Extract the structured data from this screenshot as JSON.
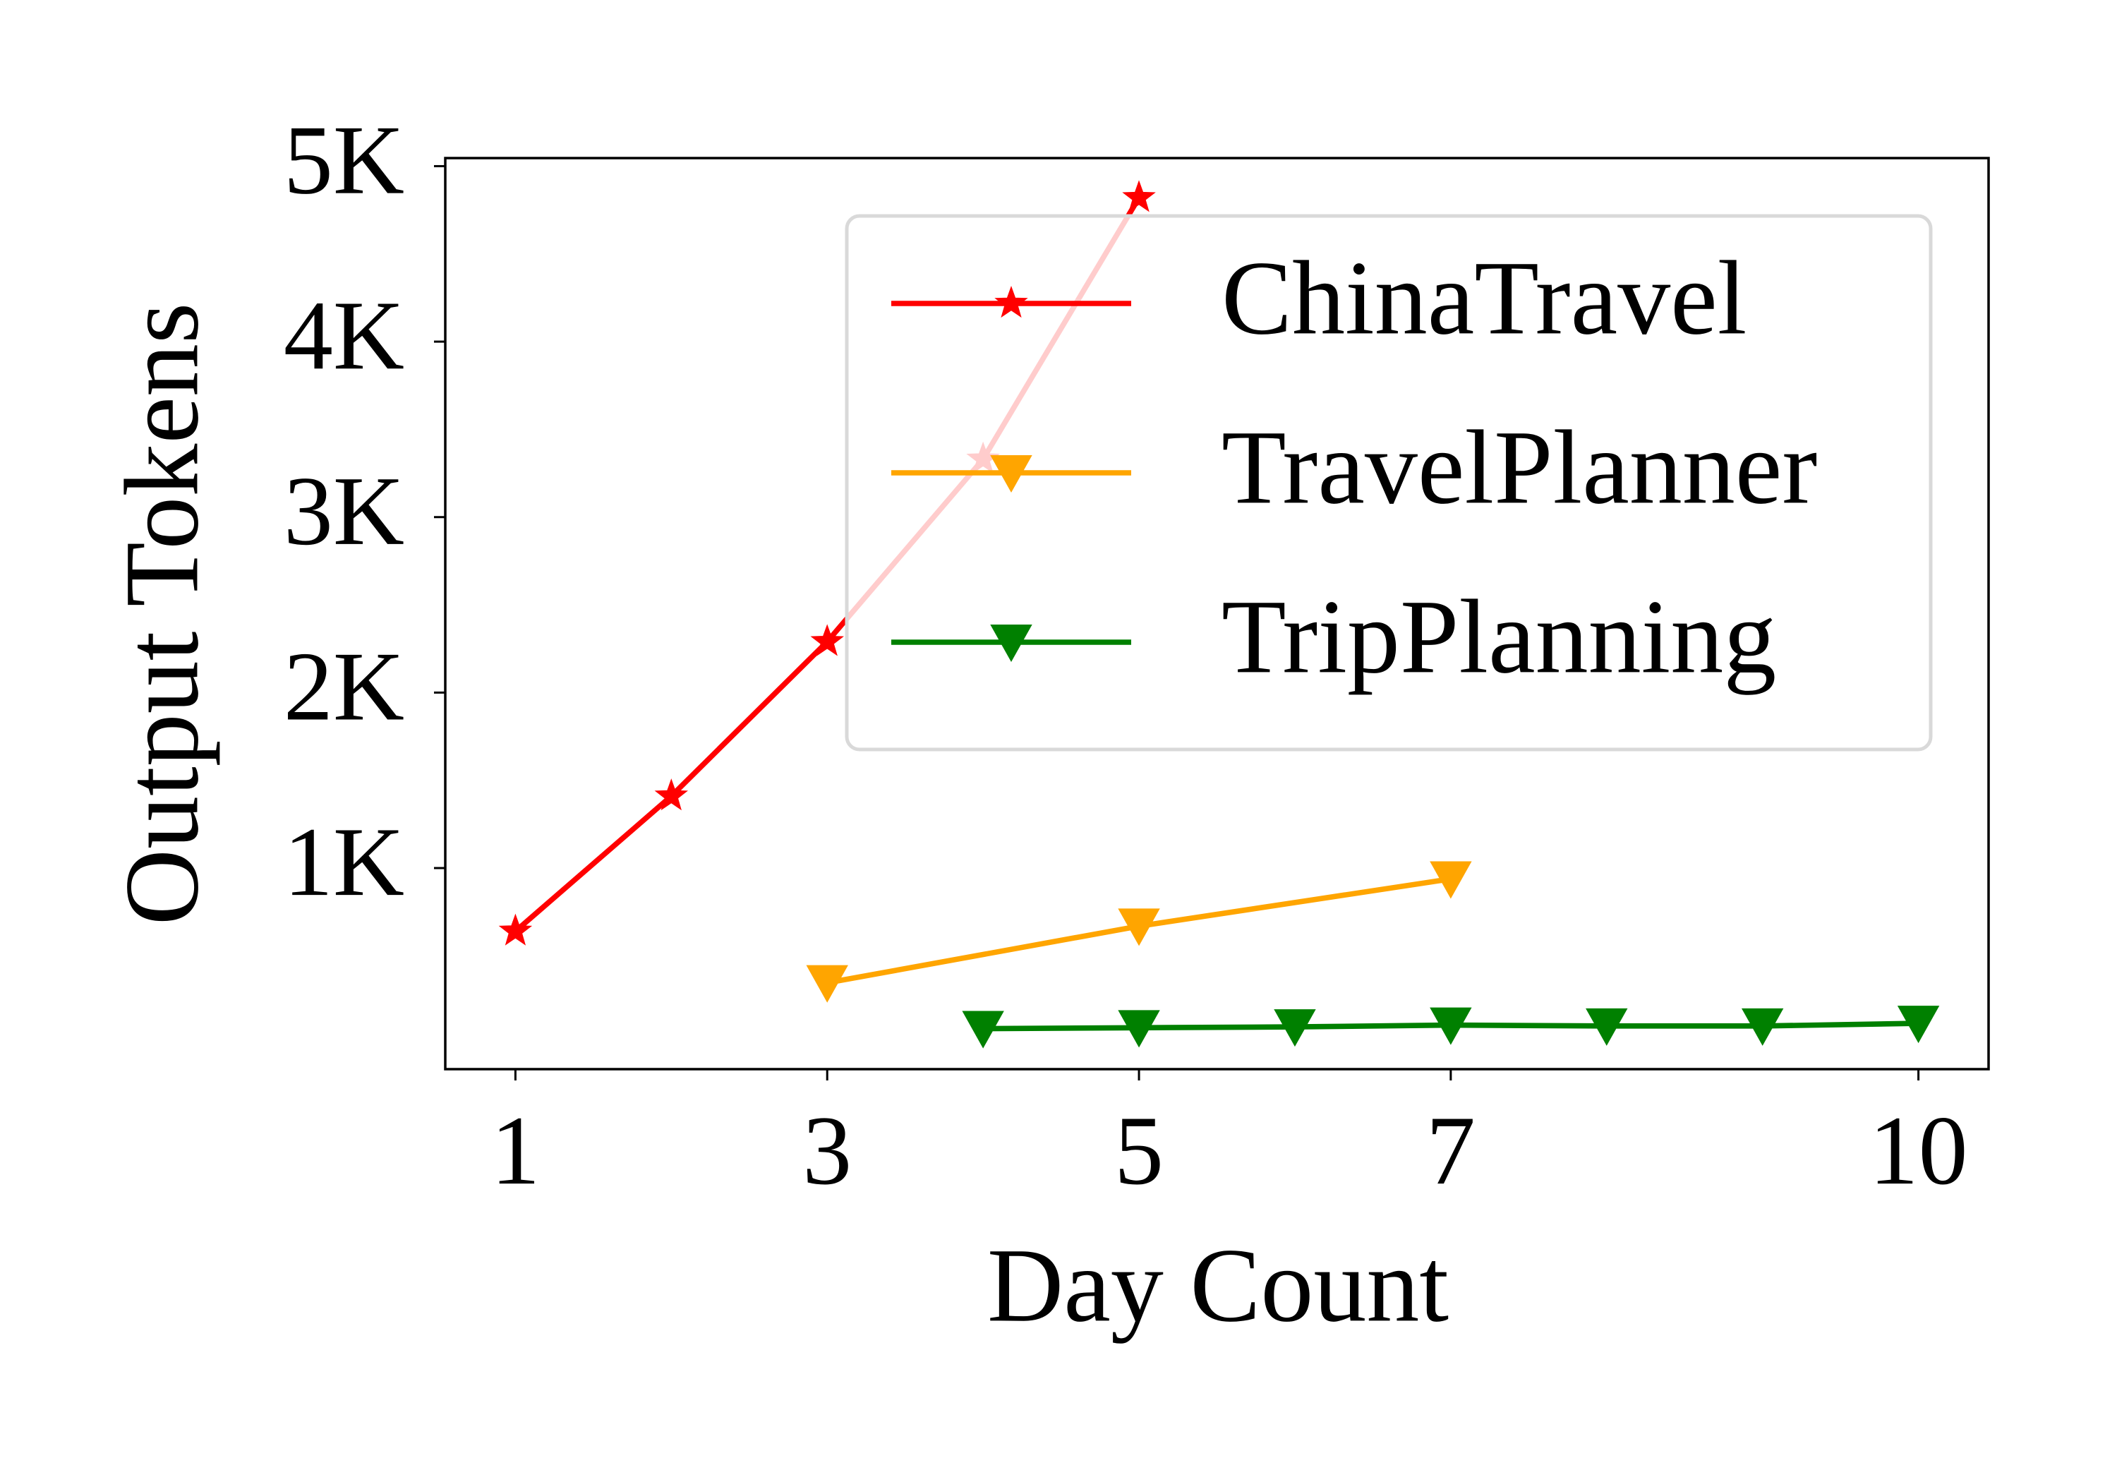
{
  "chart_data": {
    "type": "line",
    "xlabel": "Day Count",
    "ylabel": "Output Tokens",
    "xlim": [
      0.55,
      10.45
    ],
    "ylim": [
      -146,
      5046
    ],
    "xticks": [
      1,
      3,
      5,
      7,
      10
    ],
    "yticks": [
      {
        "value": 1000,
        "label": "1K"
      },
      {
        "value": 2000,
        "label": "2K"
      },
      {
        "value": 3000,
        "label": "3K"
      },
      {
        "value": 4000,
        "label": "4K"
      },
      {
        "value": 5000,
        "label": "5K"
      }
    ],
    "grid": false,
    "legend": "upper right",
    "series": [
      {
        "name": "ChinaTravel",
        "color": "#ff0000",
        "marker": "star",
        "x": [
          1,
          2,
          3,
          4,
          5
        ],
        "values": [
          640,
          1410,
          2290,
          3330,
          4820
        ]
      },
      {
        "name": "TravelPlanner",
        "color": "#ffa500",
        "marker": "triangle-down",
        "x": [
          3,
          5,
          7
        ],
        "values": [
          346,
          669,
          938
        ]
      },
      {
        "name": "TripPlanning",
        "color": "#008000",
        "marker": "triangle-down",
        "x": [
          4,
          5,
          6,
          7,
          8,
          9,
          10
        ],
        "values": [
          85,
          90,
          95,
          105,
          100,
          100,
          115
        ]
      }
    ]
  }
}
